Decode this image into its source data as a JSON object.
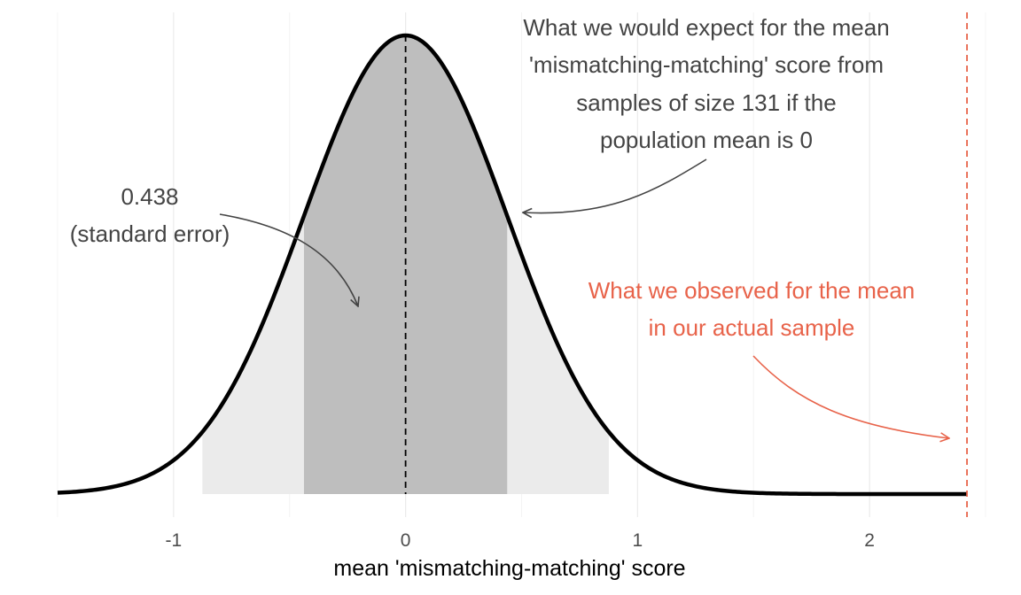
{
  "chart_data": {
    "type": "area",
    "title": "",
    "xlabel": "mean 'mismatching-matching' score",
    "ylabel": "",
    "xlim": [
      -1.5,
      2.5
    ],
    "x_ticks": [
      -1,
      0,
      1,
      2
    ],
    "x_tick_labels": [
      "-1",
      "0",
      "1",
      "2"
    ],
    "grid": "vertical",
    "distribution": {
      "kind": "normal",
      "mean": 0,
      "sd": 0.438
    },
    "shaded_regions": [
      {
        "from": -0.876,
        "to": 0.876,
        "color": "#ebebeb"
      },
      {
        "from": -0.438,
        "to": 0.438,
        "color": "#bebebe"
      }
    ],
    "mean_line": {
      "x": 0,
      "color": "#000000",
      "style": "dashed"
    },
    "observed_line": {
      "x": 2.42,
      "color": "#e8634a",
      "style": "dashed"
    },
    "curve_color": "#000000",
    "annotations": {
      "expect": {
        "lines": [
          "What we would expect for the mean",
          "'mismatching-matching' score from",
          "samples of size 131 if the",
          "population mean is 0"
        ],
        "color": "#444444"
      },
      "se": {
        "lines": [
          "0.438",
          "(standard error)"
        ],
        "color": "#444444"
      },
      "observed": {
        "lines": [
          "What we observed for the mean",
          "in our actual sample"
        ],
        "color": "#e8634a"
      }
    }
  }
}
